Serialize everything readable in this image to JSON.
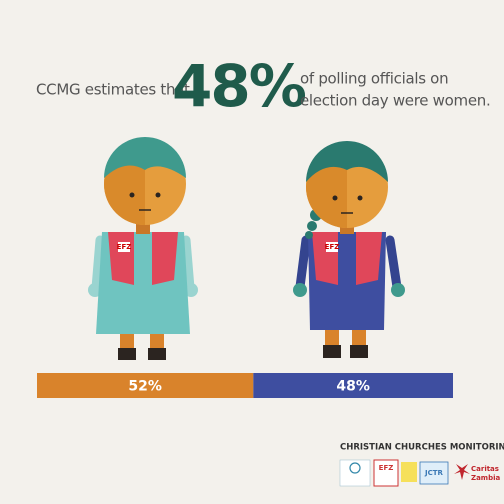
{
  "chart_data": {
    "type": "bar",
    "orientation": "horizontal",
    "stacked": true,
    "title": "CCMG estimates that",
    "title_figure": "48%",
    "subtitle": [
      "of polling officials on",
      "election day were women."
    ],
    "xlim": [
      0,
      100
    ],
    "series": [
      {
        "color": "#d9832b",
        "values": [
          52
        ],
        "value_labels": [
          "52%"
        ]
      },
      {
        "color": "#3e4ea0",
        "values": [
          48
        ],
        "value_labels": [
          "48%"
        ]
      }
    ]
  },
  "figures": {
    "vest_tag": "EFZ"
  },
  "footer": {
    "org": "CHRISTIAN CHURCHES MONITORING GROUP",
    "logos": [
      "EFZ",
      "JCTR",
      "Caritas",
      "Zambia"
    ]
  }
}
